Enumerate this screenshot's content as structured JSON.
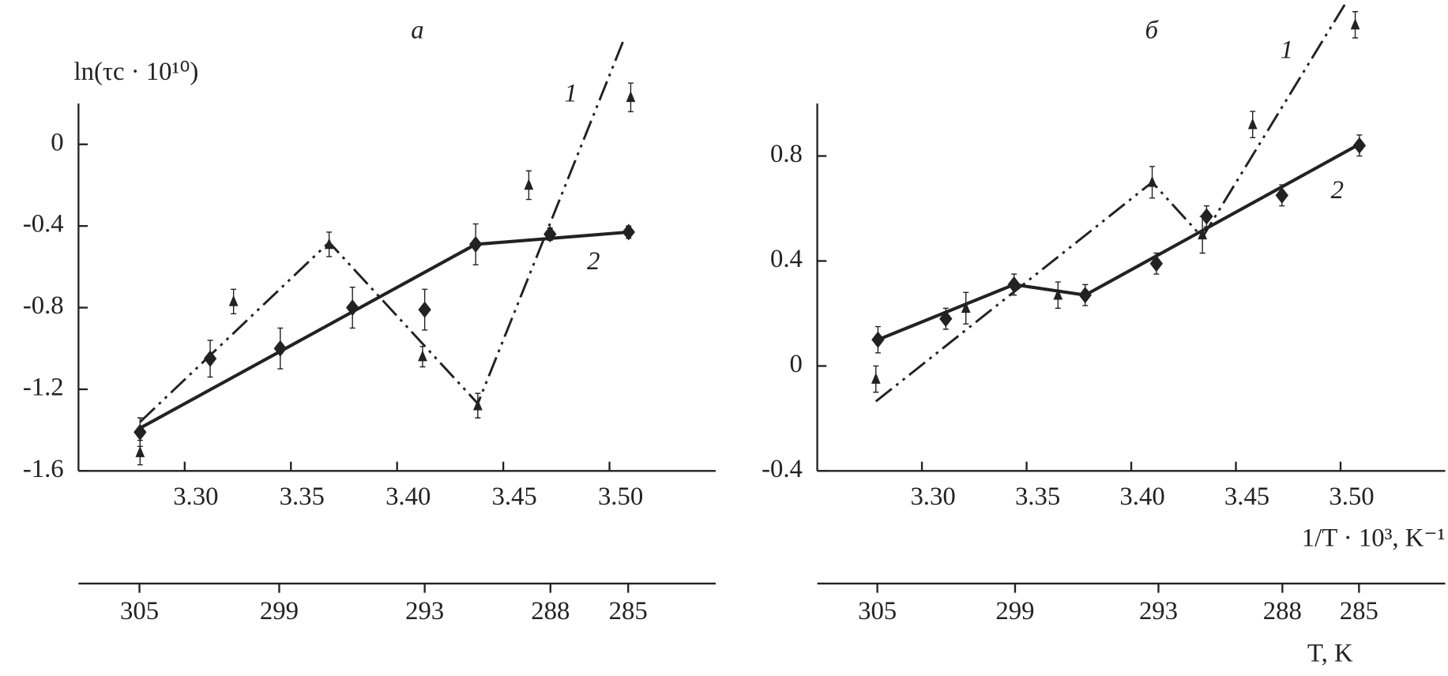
{
  "chart_data": [
    {
      "type": "line",
      "title": "а",
      "ylabel": "ln(τc · 10¹⁰)",
      "xlim": [
        3.25,
        3.55
      ],
      "ylim": [
        -1.6,
        0.2
      ],
      "xticks": [
        {
          "value": 3.3,
          "label": "3.30"
        },
        3.35,
        {
          "value": 3.4,
          "label": "3.40"
        },
        3.45,
        {
          "value": 3.5,
          "label": "3.50"
        }
      ],
      "yticks": [
        0,
        -0.4,
        -0.8,
        -1.2,
        -1.6
      ],
      "x2ticks": [
        {
          "value": 3.2787,
          "label": "305"
        },
        {
          "value": 3.3445,
          "label": "299"
        },
        {
          "value": 3.413,
          "label": "293"
        },
        {
          "value": 3.4722,
          "label": "288"
        },
        {
          "value": 3.5088,
          "label": "285"
        }
      ],
      "series": [
        {
          "name": "1",
          "color": "#222222",
          "marker": "triangle",
          "linestyle": "dashdotdot",
          "x": [
            3.279,
            3.323,
            3.368,
            3.412,
            3.438,
            3.462,
            3.51
          ],
          "values": [
            -1.51,
            -0.77,
            -0.49,
            -1.04,
            -1.28,
            -0.2,
            0.23
          ],
          "errors": [
            0.06,
            0.06,
            0.06,
            0.05,
            0.06,
            0.07,
            0.07
          ],
          "fit_x": [
            3.279,
            3.368,
            3.438,
            3.507
          ],
          "fit_values": [
            -1.36,
            -0.48,
            -1.27,
            0.52
          ]
        },
        {
          "name": "2",
          "color": "#222222",
          "marker": "diamond",
          "linestyle": "solid",
          "x": [
            3.279,
            3.312,
            3.345,
            3.379,
            3.413,
            3.437,
            3.472,
            3.509
          ],
          "values": [
            -1.41,
            -1.05,
            -1.0,
            -0.8,
            -0.81,
            -0.49,
            -0.44,
            -0.43
          ],
          "errors": [
            0.07,
            0.09,
            0.1,
            0.1,
            0.1,
            0.1,
            0.03,
            0.03
          ],
          "fit_x": [
            3.279,
            3.437,
            3.509
          ],
          "fit_values": [
            -1.39,
            -0.49,
            -0.43
          ]
        }
      ]
    },
    {
      "type": "line",
      "title": "б",
      "xlabel": "1/T · 10³, K⁻¹",
      "x2label": "T, K",
      "xlim": [
        3.25,
        3.55
      ],
      "ylim": [
        -0.4,
        1.0
      ],
      "xticks": [
        {
          "value": 3.3,
          "label": "3.30"
        },
        3.35,
        {
          "value": 3.4,
          "label": "3.40"
        },
        3.45,
        {
          "value": 3.5,
          "label": "3.50"
        }
      ],
      "yticks": [
        0.8,
        0.4,
        0,
        -0.4
      ],
      "x2ticks": [
        {
          "value": 3.2787,
          "label": "305"
        },
        {
          "value": 3.3445,
          "label": "299"
        },
        {
          "value": 3.413,
          "label": "293"
        },
        {
          "value": 3.4722,
          "label": "288"
        },
        {
          "value": 3.5088,
          "label": "285"
        }
      ],
      "series": [
        {
          "name": "1",
          "color": "#222222",
          "marker": "triangle",
          "linestyle": "dashdotdot",
          "x": [
            3.278,
            3.321,
            3.365,
            3.41,
            3.434,
            3.458,
            3.507
          ],
          "values": [
            -0.05,
            0.22,
            0.27,
            0.7,
            0.5,
            0.92,
            1.3
          ],
          "errors": [
            0.05,
            0.06,
            0.05,
            0.06,
            0.07,
            0.05,
            0.05
          ],
          "fit_x": [
            3.278,
            3.41,
            3.434,
            3.503
          ],
          "fit_values": [
            -0.135,
            0.7,
            0.49,
            1.39
          ]
        },
        {
          "name": "2",
          "color": "#222222",
          "marker": "diamond",
          "linestyle": "solid",
          "x": [
            3.279,
            3.3114,
            3.344,
            3.378,
            3.412,
            3.436,
            3.472,
            3.509
          ],
          "values": [
            0.1,
            0.18,
            0.31,
            0.27,
            0.39,
            0.57,
            0.65,
            0.84
          ],
          "errors": [
            0.05,
            0.04,
            0.04,
            0.04,
            0.04,
            0.04,
            0.04,
            0.04
          ],
          "fit_x": [
            3.279,
            3.344,
            3.378,
            3.509
          ],
          "fit_values": [
            0.1,
            0.31,
            0.27,
            0.845
          ]
        }
      ]
    }
  ]
}
